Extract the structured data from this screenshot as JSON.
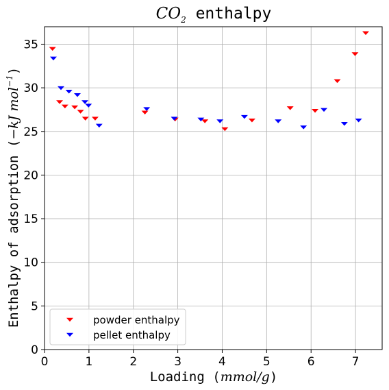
{
  "chart_data": {
    "type": "scatter",
    "title": {
      "main": "CO",
      "sub": "2",
      "rest": " enthalpy"
    },
    "xlabel": {
      "prefix": "Loading (",
      "unit": "mmol/g",
      "suffix": ")"
    },
    "ylabel": {
      "prefix": "Enthalpy of adsorption (",
      "unit": "−kJ mol",
      "exp": "−1",
      "suffix": ")"
    },
    "xlim": [
      0,
      7.6
    ],
    "ylim": [
      0,
      37
    ],
    "xticks": [
      0,
      1,
      2,
      3,
      4,
      5,
      6,
      7
    ],
    "yticks": [
      0,
      5,
      10,
      15,
      20,
      25,
      30,
      35
    ],
    "grid": true,
    "legend_position": "lower-left",
    "series": [
      {
        "name": "powder enthalpy",
        "color": "#ff0000",
        "marker": "triangle-down",
        "points": [
          [
            0.18,
            34.5
          ],
          [
            0.34,
            28.4
          ],
          [
            0.46,
            27.9
          ],
          [
            0.68,
            27.8
          ],
          [
            0.81,
            27.3
          ],
          [
            0.92,
            26.5
          ],
          [
            1.14,
            26.5
          ],
          [
            2.26,
            27.2
          ],
          [
            2.94,
            26.4
          ],
          [
            3.61,
            26.2
          ],
          [
            4.06,
            25.3
          ],
          [
            4.67,
            26.3
          ],
          [
            5.53,
            27.7
          ],
          [
            6.09,
            27.4
          ],
          [
            6.59,
            30.8
          ],
          [
            6.99,
            33.9
          ],
          [
            7.23,
            36.3
          ]
        ]
      },
      {
        "name": "pellet enthalpy",
        "color": "#0000ff",
        "marker": "triangle-down",
        "points": [
          [
            0.2,
            33.4
          ],
          [
            0.37,
            30.0
          ],
          [
            0.55,
            29.6
          ],
          [
            0.74,
            29.2
          ],
          [
            0.91,
            28.4
          ],
          [
            0.99,
            28.0
          ],
          [
            1.23,
            25.7
          ],
          [
            2.3,
            27.6
          ],
          [
            2.92,
            26.5
          ],
          [
            3.52,
            26.4
          ],
          [
            3.95,
            26.2
          ],
          [
            4.5,
            26.7
          ],
          [
            5.26,
            26.2
          ],
          [
            5.83,
            25.5
          ],
          [
            6.29,
            27.5
          ],
          [
            6.75,
            25.9
          ],
          [
            7.07,
            26.3
          ]
        ]
      }
    ]
  }
}
